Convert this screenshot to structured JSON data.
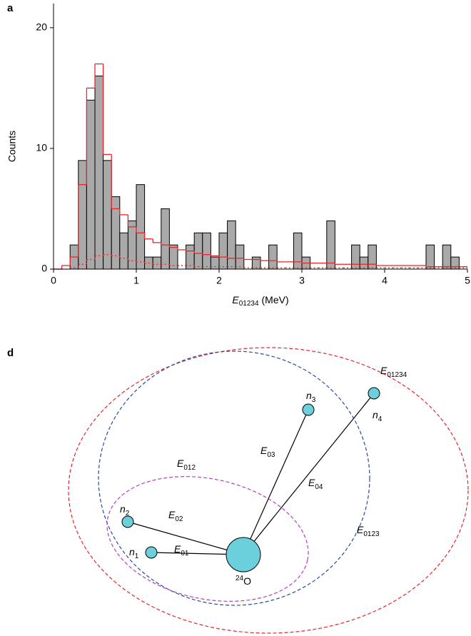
{
  "panel_labels": [
    "a",
    "d"
  ],
  "chart_data": {
    "type": "histogram",
    "bins": [
      0,
      0.1,
      0.2,
      0.3,
      0.4,
      0.5,
      0.6,
      0.7,
      0.8,
      0.9,
      1,
      1.1,
      1.2,
      1.3,
      1.4,
      1.5,
      1.6,
      1.7,
      1.8,
      1.9,
      2,
      2.1,
      2.2,
      2.3,
      2.4,
      2.5,
      2.6,
      2.7,
      2.8,
      2.9,
      3,
      3.1,
      3.2,
      3.3,
      3.4,
      3.5,
      3.6,
      3.7,
      3.8,
      3.9,
      4,
      4.1,
      4.2,
      4.3,
      4.4,
      4.5,
      4.6,
      4.7,
      4.8,
      4.9,
      5
    ],
    "values": [
      0,
      0,
      2,
      9,
      14,
      16,
      9,
      6,
      3,
      4,
      7,
      1,
      1,
      5,
      2,
      0,
      2,
      3,
      3,
      1,
      3,
      4,
      2,
      0,
      1,
      0,
      2,
      0,
      0,
      3,
      1,
      0,
      0,
      4,
      0,
      0,
      2,
      1,
      2,
      0,
      0,
      0,
      0,
      0,
      0,
      2,
      0,
      2,
      1,
      0
    ],
    "color": "#a9a9a9",
    "edge_color": "#000000",
    "overlays": [
      {
        "color": "#e8262b",
        "style": "solid",
        "values": [
          0,
          0.3,
          1,
          7,
          15,
          17,
          9.5,
          5,
          4.5,
          3.5,
          3,
          2.5,
          2.2,
          2,
          1.8,
          1.6,
          1.5,
          1.3,
          1.2,
          1.1,
          1,
          0.9,
          0.9,
          0.8,
          0.8,
          0.7,
          0.7,
          0.6,
          0.6,
          0.6,
          0.5,
          0.5,
          0.5,
          0.5,
          0.4,
          0.4,
          0.4,
          0.4,
          0.4,
          0.3,
          0.3,
          0.3,
          0.3,
          0.3,
          0.3,
          0.2,
          0.2,
          0.2,
          0.2,
          0.2
        ]
      },
      {
        "color": "#e8262b",
        "style": "dotted",
        "values": [
          0,
          0,
          0.1,
          0.4,
          0.8,
          1.1,
          1.2,
          1.1,
          0.9,
          0.7,
          0.6,
          0.5,
          0.4,
          0.4,
          0.3,
          0.3,
          0.3,
          0.2,
          0.2,
          0.2,
          0.2,
          0.2,
          0.2,
          0.1,
          0.1,
          0.1,
          0.1,
          0.1,
          0.1,
          0.1,
          0.1,
          0.1,
          0.1,
          0.1,
          0.1,
          0.1,
          0.1,
          0.1,
          0.1,
          0.1,
          0.1,
          0.1,
          0.1,
          0.1,
          0.1,
          0.1,
          0.1,
          0.1,
          0.1,
          0.1
        ]
      }
    ],
    "x_label": {
      "symbol": "E",
      "subscript": "01234",
      "unit": "(MeV)"
    },
    "y_label": "Counts",
    "xlim": [
      0,
      5
    ],
    "ylim": [
      0,
      22
    ],
    "xticks": [
      0,
      1,
      2,
      3,
      4,
      5
    ],
    "yticks": [
      0,
      10,
      20
    ]
  },
  "diagram": {
    "nodes": [
      {
        "label": {
          "symbol": "n",
          "subscript": "1"
        }
      },
      {
        "label": {
          "symbol": "n",
          "subscript": "2"
        }
      },
      {
        "label": {
          "symbol": "n",
          "subscript": "3"
        }
      },
      {
        "label": {
          "symbol": "n",
          "subscript": "4"
        }
      },
      {
        "label": {
          "superscript": "24",
          "symbol": "O"
        }
      }
    ],
    "edges": [
      {
        "label": {
          "symbol": "E",
          "subscript": "01"
        }
      },
      {
        "label": {
          "symbol": "E",
          "subscript": "02"
        }
      },
      {
        "label": {
          "symbol": "E",
          "subscript": "03"
        }
      },
      {
        "label": {
          "symbol": "E",
          "subscript": "04"
        }
      }
    ],
    "regions": [
      {
        "label": {
          "symbol": "E",
          "subscript": "01234"
        },
        "color": "#e8262b"
      },
      {
        "label": {
          "symbol": "E",
          "subscript": "0123"
        },
        "color": "#2a4a9a"
      },
      {
        "label": {
          "symbol": "E",
          "subscript": "012"
        },
        "color": "#b040c0"
      }
    ]
  }
}
